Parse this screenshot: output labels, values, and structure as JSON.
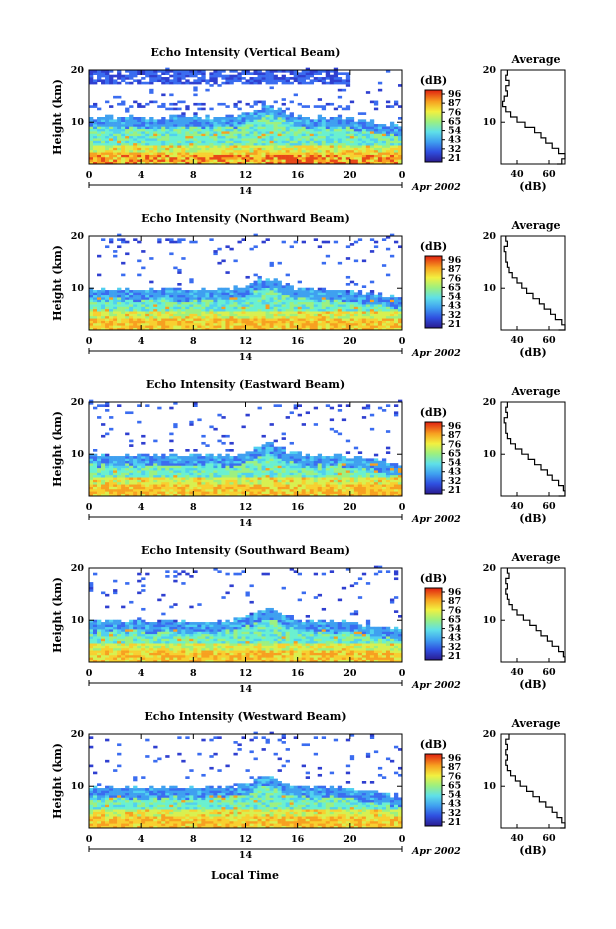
{
  "figure": {
    "xlabel": "Local Time",
    "date_label": "Apr 2002",
    "day_label": "14"
  },
  "chart_data": [
    {
      "type": "heatmap",
      "title": "Echo Intensity (Vertical Beam)",
      "ylabel": "Height (km)",
      "xlim": [
        0,
        24
      ],
      "ylim": [
        2,
        20
      ],
      "x_ticks": [
        "0",
        "4",
        "8",
        "12",
        "16",
        "20",
        "0"
      ],
      "y_ticks": [
        "20",
        "10"
      ],
      "colorbar": {
        "label": "(dB)",
        "ticks": [
          "96",
          "87",
          "76",
          "65",
          "54",
          "43",
          "32",
          "21"
        ]
      }
    },
    {
      "type": "line",
      "title": "Average",
      "xlabel": "(dB)",
      "ylabel": "",
      "x_ticks": [
        "40",
        "60"
      ],
      "y_ticks": [
        "20",
        "10"
      ],
      "xlim": [
        30,
        70
      ],
      "ylim": [
        2,
        20
      ],
      "x": [
        34,
        33,
        35,
        33,
        34,
        32,
        31,
        33,
        36,
        40,
        45,
        51,
        55,
        58,
        62,
        66,
        70,
        68,
        65
      ],
      "y": [
        20,
        19,
        18,
        17,
        16,
        15,
        14,
        13,
        12,
        11,
        10,
        9,
        8,
        7,
        6,
        5,
        4,
        3,
        2
      ]
    },
    {
      "type": "heatmap",
      "title": "Echo Intensity (Northward Beam)",
      "ylabel": "Height (km)",
      "xlim": [
        0,
        24
      ],
      "ylim": [
        2,
        20
      ],
      "x_ticks": [
        "0",
        "4",
        "8",
        "12",
        "16",
        "20",
        "0"
      ],
      "y_ticks": [
        "20",
        "10"
      ],
      "colorbar": {
        "label": "(dB)",
        "ticks": [
          "96",
          "87",
          "76",
          "65",
          "54",
          "43",
          "32",
          "21"
        ]
      }
    },
    {
      "type": "line",
      "title": "Average",
      "xlabel": "(dB)",
      "ylabel": "",
      "x_ticks": [
        "40",
        "60"
      ],
      "y_ticks": [
        "20",
        "10"
      ],
      "xlim": [
        30,
        70
      ],
      "ylim": [
        2,
        20
      ],
      "x": [
        33,
        34,
        32,
        33,
        33,
        34,
        35,
        37,
        40,
        43,
        46,
        50,
        54,
        57,
        61,
        64,
        68,
        70,
        66
      ],
      "y": [
        20,
        19,
        18,
        17,
        16,
        15,
        14,
        13,
        12,
        11,
        10,
        9,
        8,
        7,
        6,
        5,
        4,
        3,
        2
      ]
    },
    {
      "type": "heatmap",
      "title": "Echo Intensity (Eastward Beam)",
      "ylabel": "Height (km)",
      "xlim": [
        0,
        24
      ],
      "ylim": [
        2,
        20
      ],
      "x_ticks": [
        "0",
        "4",
        "8",
        "12",
        "16",
        "20",
        "0"
      ],
      "y_ticks": [
        "20",
        "10"
      ],
      "colorbar": {
        "label": "(dB)",
        "ticks": [
          "96",
          "87",
          "76",
          "65",
          "54",
          "43",
          "32",
          "21"
        ]
      }
    },
    {
      "type": "line",
      "title": "Average",
      "xlabel": "(dB)",
      "ylabel": "",
      "x_ticks": [
        "40",
        "60"
      ],
      "y_ticks": [
        "20",
        "10"
      ],
      "xlim": [
        30,
        70
      ],
      "ylim": [
        2,
        20
      ],
      "x": [
        34,
        33,
        34,
        32,
        33,
        33,
        34,
        36,
        39,
        43,
        47,
        51,
        55,
        59,
        62,
        66,
        69,
        70,
        66
      ],
      "y": [
        20,
        19,
        18,
        17,
        16,
        15,
        14,
        13,
        12,
        11,
        10,
        9,
        8,
        7,
        6,
        5,
        4,
        3,
        2
      ]
    },
    {
      "type": "heatmap",
      "title": "Echo Intensity (Southward Beam)",
      "ylabel": "Height (km)",
      "xlim": [
        0,
        24
      ],
      "ylim": [
        2,
        20
      ],
      "x_ticks": [
        "0",
        "4",
        "8",
        "12",
        "16",
        "20",
        "0"
      ],
      "y_ticks": [
        "20",
        "10"
      ],
      "colorbar": {
        "label": "(dB)",
        "ticks": [
          "96",
          "87",
          "76",
          "65",
          "54",
          "43",
          "32",
          "21"
        ]
      }
    },
    {
      "type": "line",
      "title": "Average",
      "xlabel": "(dB)",
      "ylabel": "",
      "x_ticks": [
        "40",
        "60"
      ],
      "y_ticks": [
        "20",
        "10"
      ],
      "xlim": [
        30,
        70
      ],
      "ylim": [
        2,
        20
      ],
      "x": [
        34,
        35,
        33,
        34,
        33,
        34,
        35,
        37,
        40,
        44,
        48,
        52,
        55,
        59,
        62,
        66,
        69,
        70,
        67
      ],
      "y": [
        20,
        19,
        18,
        17,
        16,
        15,
        14,
        13,
        12,
        11,
        10,
        9,
        8,
        7,
        6,
        5,
        4,
        3,
        2
      ]
    },
    {
      "type": "heatmap",
      "title": "Echo Intensity (Westward Beam)",
      "ylabel": "Height (km)",
      "xlim": [
        0,
        24
      ],
      "ylim": [
        2,
        20
      ],
      "x_ticks": [
        "0",
        "4",
        "8",
        "12",
        "16",
        "20",
        "0"
      ],
      "y_ticks": [
        "20",
        "10"
      ],
      "colorbar": {
        "label": "(dB)",
        "ticks": [
          "96",
          "87",
          "76",
          "65",
          "54",
          "43",
          "32",
          "21"
        ]
      }
    },
    {
      "type": "line",
      "title": "Average",
      "xlabel": "(dB)",
      "ylabel": "",
      "x_ticks": [
        "40",
        "60"
      ],
      "y_ticks": [
        "20",
        "10"
      ],
      "xlim": [
        30,
        70
      ],
      "ylim": [
        2,
        20
      ],
      "x": [
        35,
        33,
        34,
        33,
        34,
        33,
        34,
        36,
        39,
        42,
        46,
        50,
        54,
        58,
        62,
        65,
        68,
        70,
        67
      ],
      "y": [
        20,
        19,
        18,
        17,
        16,
        15,
        14,
        13,
        12,
        11,
        10,
        9,
        8,
        7,
        6,
        5,
        4,
        3,
        2
      ]
    }
  ]
}
